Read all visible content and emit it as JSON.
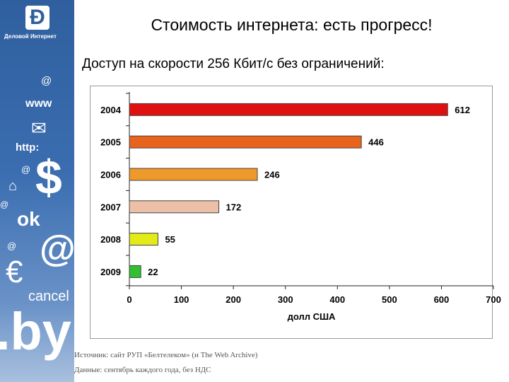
{
  "sidebar": {
    "logo_letter": "Ð",
    "brand": "Деловой Интернет",
    "glyphs": {
      "at1": "@",
      "www": "www",
      "mail": "✉",
      "http": "http:",
      "at2": "@",
      "dollar": "$",
      "house": "⌂",
      "at3": "@",
      "ok": "ok",
      "at4": "@",
      "at_big": "@",
      "euro": "€",
      "cancel": "cancel",
      "by": ".by"
    }
  },
  "title": "Стоимость интернета: есть прогресс!",
  "subtitle": "Доступ на скорости 256 Кбит/с без ограничений:",
  "chart_data": {
    "type": "bar",
    "orientation": "horizontal",
    "categories": [
      "2004",
      "2005",
      "2006",
      "2007",
      "2008",
      "2009"
    ],
    "values": [
      612,
      446,
      246,
      172,
      55,
      22
    ],
    "colors": [
      "#e01010",
      "#e8641c",
      "#ee9a2a",
      "#ecc0a6",
      "#e2ea18",
      "#30c030"
    ],
    "xlabel": "долл США",
    "xlim": [
      0,
      700
    ],
    "xticks": [
      0,
      100,
      200,
      300,
      400,
      500,
      600,
      700
    ],
    "grid": false,
    "data_labels": true
  },
  "source": {
    "line1": "Источник: сайт РУП «Белтелеком» (и The Web Archive)",
    "line2": "Данные: сентябрь каждого года, без НДС"
  }
}
